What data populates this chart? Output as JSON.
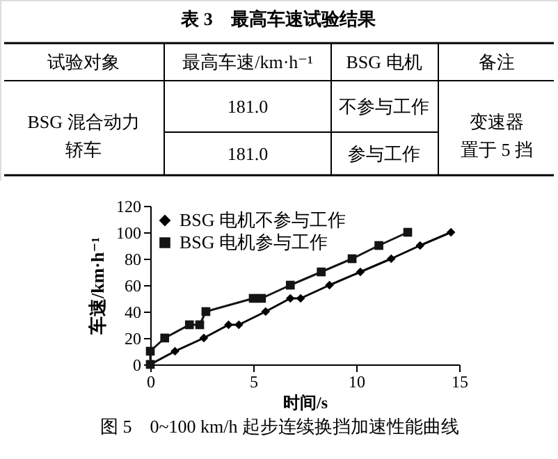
{
  "chart_data": [
    {
      "type": "other",
      "title": "表 3　最高车速试验结果",
      "annotations": [
        "试验对象",
        "最高车速/km·h⁻¹",
        "BSG 电机",
        "备注",
        "BSG 混合动力轿车",
        "181.0",
        "不参与工作",
        "变速器置于 5 挡",
        "181.0",
        "参与工作"
      ]
    },
    {
      "type": "line",
      "title": "图 5　0~100 km/h 起步连续换挡加速性能曲线",
      "xlabel": "时间/s",
      "ylabel": "车速/km·h⁻¹",
      "xlim": [
        0,
        15
      ],
      "xticks": [
        0,
        5,
        10,
        15
      ],
      "ylim": [
        0,
        120
      ],
      "yticks": [
        0,
        20,
        40,
        60,
        80,
        100,
        120
      ],
      "grid": false,
      "legend": "top left",
      "line_style": "solid",
      "series": [
        {
          "name": "BSG 电机不参与工作",
          "color": "#000000",
          "marker": "diamond",
          "x": [
            0,
            1.2,
            2.6,
            3.8,
            4.3,
            5.6,
            6.8,
            7.3,
            8.7,
            10.2,
            11.7,
            13.1,
            14.6
          ],
          "values": [
            0,
            10,
            20,
            30,
            30,
            40,
            50,
            50,
            60,
            70,
            80,
            90,
            100
          ]
        },
        {
          "name": "BSG 电机参与工作",
          "color": "#141414",
          "marker": "square",
          "x": [
            0,
            0,
            0.7,
            1.9,
            2.4,
            2.7,
            5.0,
            5.4,
            6.8,
            8.3,
            9.8,
            11.1,
            12.5
          ],
          "values": [
            0,
            10,
            20,
            30,
            30,
            40,
            50,
            50,
            60,
            70,
            80,
            90,
            100
          ]
        }
      ]
    }
  ]
}
